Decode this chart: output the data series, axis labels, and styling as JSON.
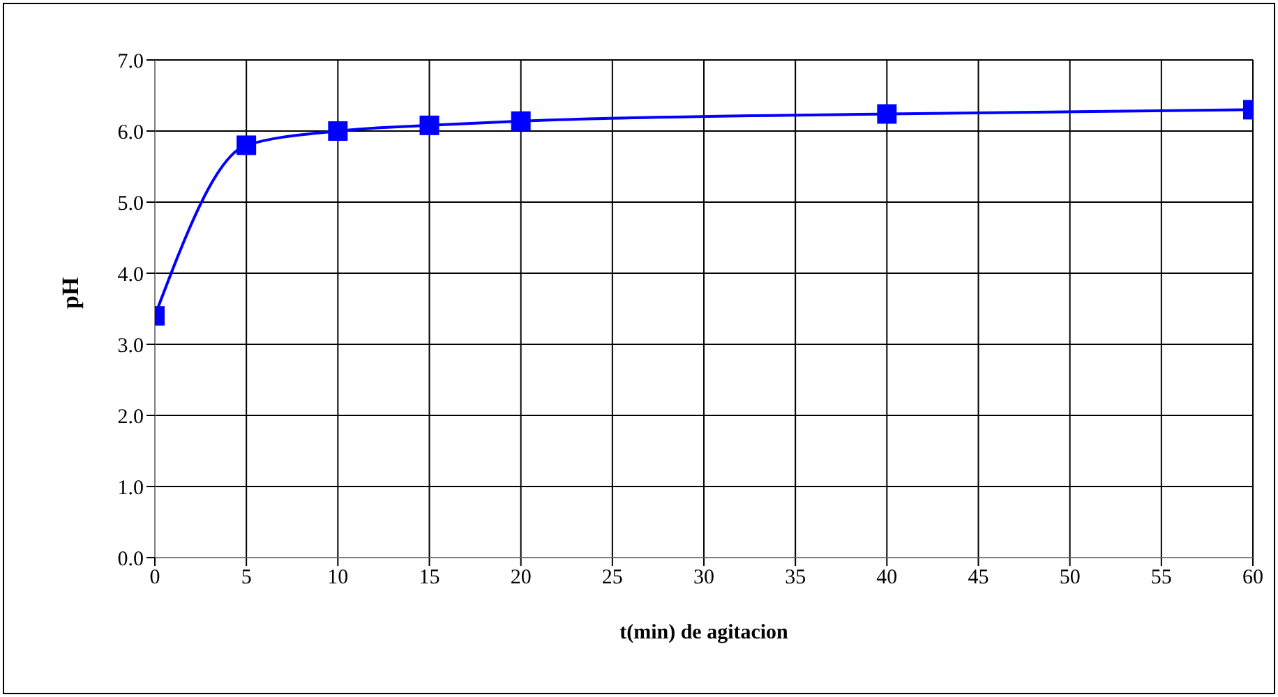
{
  "chart_data": {
    "type": "line",
    "xlabel": "t(min) de agitacion",
    "ylabel": "pH",
    "x": [
      0,
      5,
      10,
      15,
      20,
      40,
      60
    ],
    "series": [
      {
        "color": "#0000ff",
        "values": [
          3.4,
          5.8,
          6.0,
          6.08,
          6.14,
          6.24,
          6.3
        ]
      }
    ],
    "xlim": [
      0,
      60
    ],
    "xticks": [
      0,
      5,
      10,
      15,
      20,
      25,
      30,
      35,
      40,
      45,
      50,
      55,
      60
    ],
    "ylim": [
      0,
      7
    ],
    "yticks": [
      {
        "value": 0,
        "label": "0.0"
      },
      {
        "value": 1,
        "label": "1.0"
      },
      {
        "value": 2,
        "label": "2.0"
      },
      {
        "value": 3,
        "label": "3.0"
      },
      {
        "value": 4,
        "label": "4.0"
      },
      {
        "value": 5,
        "label": "5.0"
      },
      {
        "value": 6,
        "label": "6.0"
      },
      {
        "value": 7,
        "label": "7.0"
      }
    ],
    "grid": true,
    "marker": "square",
    "line_style": "solid"
  }
}
